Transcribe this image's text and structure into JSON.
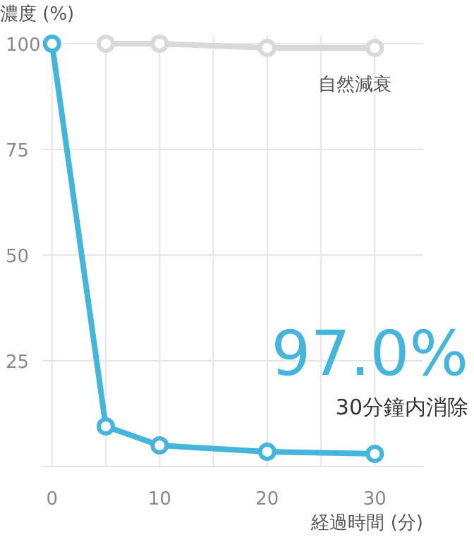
{
  "chart_data": {
    "type": "line",
    "ylabel": "濃度 (%)",
    "xlabel": "経過時間 (分)",
    "x": [
      0,
      5,
      10,
      20,
      30
    ],
    "series": [
      {
        "name": "自然減衰",
        "color": "#d9d9d9",
        "values": [
          null,
          100,
          100,
          99,
          99
        ]
      },
      {
        "color": "#46b5dc",
        "values": [
          100,
          9.5,
          5,
          3.5,
          3
        ]
      }
    ],
    "xlim": [
      -0.9,
      34.5
    ],
    "ylim": [
      0,
      102
    ],
    "xticks": [
      0,
      {
        "value": 5,
        "label": null
      },
      10,
      {
        "value": 15,
        "label": null
      },
      20,
      {
        "value": 25,
        "label": null
      },
      30
    ],
    "yticks": [
      25,
      50,
      75,
      100
    ],
    "grid": true,
    "marker": "circle",
    "line_style": "solid",
    "annotations": [
      "97.0%",
      "30分鐘内消除"
    ]
  }
}
